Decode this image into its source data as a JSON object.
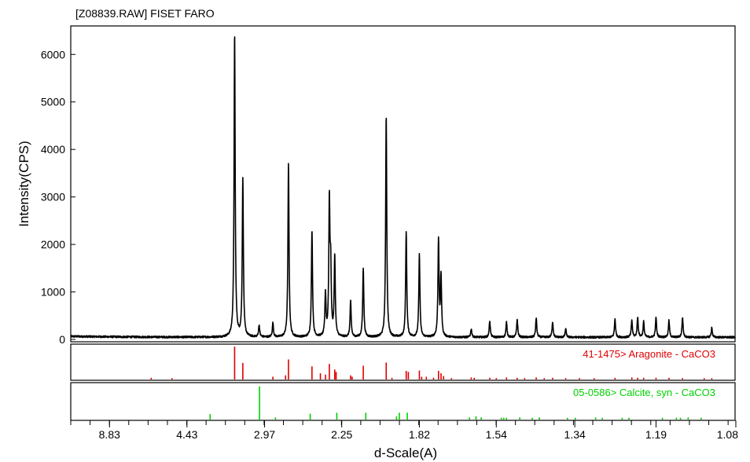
{
  "chart_data": {
    "type": "line",
    "title": "[Z08839.RAW] FISET FARO",
    "xlabel": "d-Scale(A)",
    "ylabel": "Intensity(CPS)",
    "ylim": [
      0,
      6600
    ],
    "x_axis": "two-theta positions labeled as d-spacing, decreasing left to right",
    "xtick_labels": [
      "8.83",
      "4.43",
      "2.97",
      "2.25",
      "1.82",
      "1.54",
      "1.34",
      "1.19",
      "1.08"
    ],
    "ytick_labels": [
      "0",
      "1000",
      "2000",
      "3000",
      "4000",
      "5000",
      "6000"
    ],
    "yticks": [
      0,
      1000,
      2000,
      3000,
      4000,
      5000,
      6000
    ],
    "grid": false,
    "legend": "none",
    "series": [
      {
        "color": "#000000",
        "peaks": [
          {
            "d": 3.4,
            "i": 6390
          },
          {
            "d": 3.27,
            "i": 3330
          },
          {
            "d": 3.04,
            "i": 250
          },
          {
            "d": 2.87,
            "i": 300
          },
          {
            "d": 2.7,
            "i": 3640
          },
          {
            "d": 2.48,
            "i": 2250
          },
          {
            "d": 2.37,
            "i": 900
          },
          {
            "d": 2.34,
            "i": 2800
          },
          {
            "d": 2.33,
            "i": 1350
          },
          {
            "d": 2.3,
            "i": 1680
          },
          {
            "d": 2.19,
            "i": 760
          },
          {
            "d": 2.11,
            "i": 1460
          },
          {
            "d": 1.98,
            "i": 4690
          },
          {
            "d": 1.88,
            "i": 2230
          },
          {
            "d": 1.82,
            "i": 1740
          },
          {
            "d": 1.74,
            "i": 2050
          },
          {
            "d": 1.73,
            "i": 1250
          },
          {
            "d": 1.62,
            "i": 180
          },
          {
            "d": 1.56,
            "i": 350
          },
          {
            "d": 1.51,
            "i": 320
          },
          {
            "d": 1.48,
            "i": 380
          },
          {
            "d": 1.43,
            "i": 410
          },
          {
            "d": 1.39,
            "i": 330
          },
          {
            "d": 1.36,
            "i": 180
          },
          {
            "d": 1.26,
            "i": 390
          },
          {
            "d": 1.23,
            "i": 360
          },
          {
            "d": 1.22,
            "i": 420
          },
          {
            "d": 1.21,
            "i": 330
          },
          {
            "d": 1.19,
            "i": 420
          },
          {
            "d": 1.17,
            "i": 350
          },
          {
            "d": 1.15,
            "i": 420
          },
          {
            "d": 1.11,
            "i": 200
          }
        ]
      }
    ],
    "reference_patterns": [
      {
        "label": "41-1475> Aragonite - CaCO3",
        "color": "#e00000",
        "lines": [
          {
            "d": 5.75,
            "h": 0.05
          },
          {
            "d": 4.9,
            "h": 0.04
          },
          {
            "d": 3.4,
            "h": 0.95
          },
          {
            "d": 3.27,
            "h": 0.48
          },
          {
            "d": 2.87,
            "h": 0.08
          },
          {
            "d": 2.73,
            "h": 0.12
          },
          {
            "d": 2.7,
            "h": 0.58
          },
          {
            "d": 2.48,
            "h": 0.38
          },
          {
            "d": 2.41,
            "h": 0.18
          },
          {
            "d": 2.37,
            "h": 0.14
          },
          {
            "d": 2.34,
            "h": 0.45
          },
          {
            "d": 2.3,
            "h": 0.29
          },
          {
            "d": 2.29,
            "h": 0.22
          },
          {
            "d": 2.19,
            "h": 0.12
          },
          {
            "d": 2.18,
            "h": 0.08
          },
          {
            "d": 2.11,
            "h": 0.4
          },
          {
            "d": 1.98,
            "h": 0.49
          },
          {
            "d": 1.95,
            "h": 0.05
          },
          {
            "d": 1.88,
            "h": 0.25
          },
          {
            "d": 1.87,
            "h": 0.22
          },
          {
            "d": 1.82,
            "h": 0.26
          },
          {
            "d": 1.81,
            "h": 0.08
          },
          {
            "d": 1.79,
            "h": 0.08
          },
          {
            "d": 1.76,
            "h": 0.05
          },
          {
            "d": 1.74,
            "h": 0.25
          },
          {
            "d": 1.73,
            "h": 0.18
          },
          {
            "d": 1.72,
            "h": 0.1
          },
          {
            "d": 1.69,
            "h": 0.04
          },
          {
            "d": 1.62,
            "h": 0.06
          },
          {
            "d": 1.61,
            "h": 0.05
          },
          {
            "d": 1.56,
            "h": 0.05
          },
          {
            "d": 1.54,
            "h": 0.04
          },
          {
            "d": 1.51,
            "h": 0.06
          },
          {
            "d": 1.48,
            "h": 0.05
          },
          {
            "d": 1.46,
            "h": 0.04
          },
          {
            "d": 1.43,
            "h": 0.06
          },
          {
            "d": 1.41,
            "h": 0.04
          },
          {
            "d": 1.39,
            "h": 0.05
          },
          {
            "d": 1.36,
            "h": 0.04
          },
          {
            "d": 1.33,
            "h": 0.04
          },
          {
            "d": 1.3,
            "h": 0.04
          },
          {
            "d": 1.26,
            "h": 0.05
          },
          {
            "d": 1.23,
            "h": 0.06
          },
          {
            "d": 1.22,
            "h": 0.05
          },
          {
            "d": 1.21,
            "h": 0.05
          },
          {
            "d": 1.19,
            "h": 0.05
          },
          {
            "d": 1.17,
            "h": 0.05
          },
          {
            "d": 1.15,
            "h": 0.04
          },
          {
            "d": 1.12,
            "h": 0.04
          },
          {
            "d": 1.11,
            "h": 0.04
          }
        ]
      },
      {
        "label": "05-0586> Calcite, syn - CaCO3",
        "color": "#00d000",
        "lines": [
          {
            "d": 3.86,
            "h": 0.15
          },
          {
            "d": 3.035,
            "h": 0.92
          },
          {
            "d": 2.84,
            "h": 0.06
          },
          {
            "d": 2.495,
            "h": 0.16
          },
          {
            "d": 2.285,
            "h": 0.19
          },
          {
            "d": 2.095,
            "h": 0.19
          },
          {
            "d": 1.927,
            "h": 0.09
          },
          {
            "d": 1.913,
            "h": 0.19
          },
          {
            "d": 1.875,
            "h": 0.19
          },
          {
            "d": 1.626,
            "h": 0.06
          },
          {
            "d": 1.604,
            "h": 0.09
          },
          {
            "d": 1.587,
            "h": 0.06
          },
          {
            "d": 1.525,
            "h": 0.05
          },
          {
            "d": 1.518,
            "h": 0.05
          },
          {
            "d": 1.51,
            "h": 0.05
          },
          {
            "d": 1.473,
            "h": 0.06
          },
          {
            "d": 1.44,
            "h": 0.05
          },
          {
            "d": 1.422,
            "h": 0.06
          },
          {
            "d": 1.356,
            "h": 0.05
          },
          {
            "d": 1.339,
            "h": 0.05
          },
          {
            "d": 1.297,
            "h": 0.06
          },
          {
            "d": 1.284,
            "h": 0.05
          },
          {
            "d": 1.247,
            "h": 0.05
          },
          {
            "d": 1.235,
            "h": 0.05
          },
          {
            "d": 1.18,
            "h": 0.05
          },
          {
            "d": 1.159,
            "h": 0.05
          },
          {
            "d": 1.153,
            "h": 0.05
          },
          {
            "d": 1.142,
            "h": 0.06
          },
          {
            "d": 1.124,
            "h": 0.05
          }
        ]
      }
    ]
  }
}
